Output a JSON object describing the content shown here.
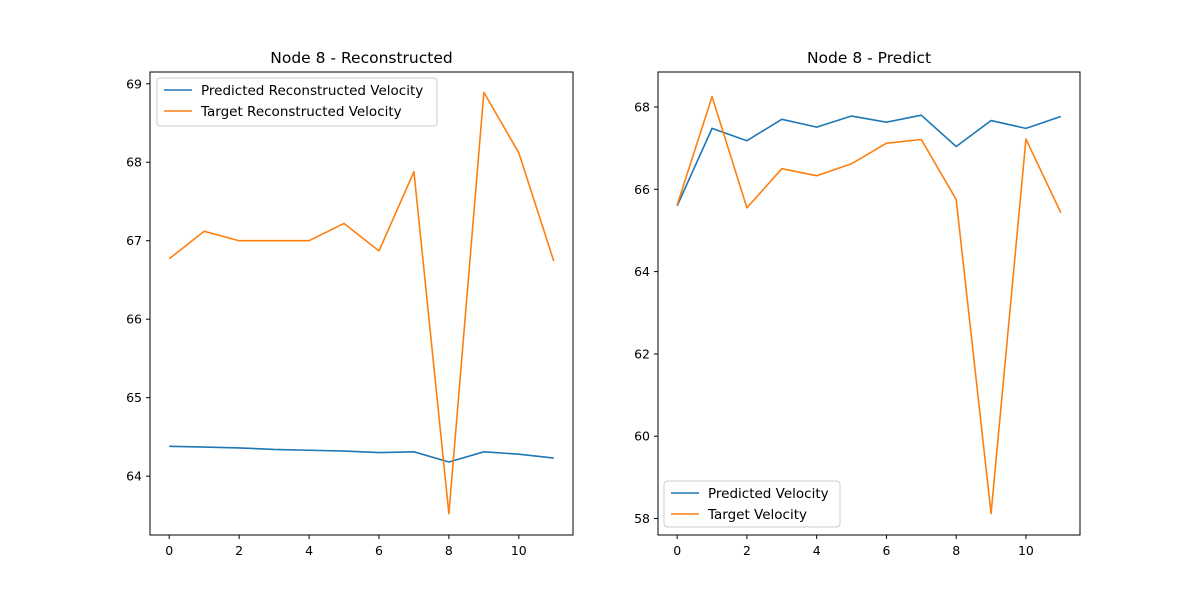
{
  "colors": {
    "series1": "#1f77b4",
    "series2": "#ff7f0e",
    "axes": "#000000",
    "background": "#ffffff",
    "legend_border": "#cccccc"
  },
  "chart_data": [
    {
      "type": "line",
      "title": "Node 8 - Reconstructed",
      "xlabel": "",
      "ylabel": "",
      "x": [
        0,
        1,
        2,
        3,
        4,
        5,
        6,
        7,
        8,
        9,
        10,
        11
      ],
      "xlim": [
        -0.55,
        11.55
      ],
      "ylim": [
        63.25,
        69.15
      ],
      "xticks": [
        0,
        2,
        4,
        6,
        8,
        10
      ],
      "yticks": [
        64,
        65,
        66,
        67,
        68,
        69
      ],
      "grid": false,
      "legend_position": "upper-left",
      "series": [
        {
          "name": "Predicted Reconstructed Velocity",
          "color": "#1f77b4",
          "values": [
            64.38,
            64.37,
            64.36,
            64.34,
            64.33,
            64.32,
            64.3,
            64.31,
            64.18,
            64.31,
            64.28,
            64.23
          ]
        },
        {
          "name": "Target Reconstructed Velocity",
          "color": "#ff7f0e",
          "values": [
            66.77,
            67.12,
            67.0,
            67.0,
            67.0,
            67.22,
            66.87,
            67.88,
            63.52,
            68.89,
            68.12,
            66.74
          ]
        }
      ]
    },
    {
      "type": "line",
      "title": "Node 8 - Predict",
      "xlabel": "",
      "ylabel": "",
      "x": [
        0,
        1,
        2,
        3,
        4,
        5,
        6,
        7,
        8,
        9,
        10,
        11
      ],
      "xlim": [
        -0.55,
        11.55
      ],
      "ylim": [
        57.6,
        68.85
      ],
      "xticks": [
        0,
        2,
        4,
        6,
        8,
        10
      ],
      "yticks": [
        58,
        60,
        62,
        64,
        66,
        68
      ],
      "grid": false,
      "legend_position": "lower-left",
      "series": [
        {
          "name": "Predicted Velocity",
          "color": "#1f77b4",
          "values": [
            65.6,
            67.48,
            67.18,
            67.7,
            67.51,
            67.78,
            67.63,
            67.8,
            67.04,
            67.67,
            67.48,
            67.77
          ]
        },
        {
          "name": "Target Velocity",
          "color": "#ff7f0e",
          "values": [
            65.62,
            68.25,
            65.55,
            66.5,
            66.33,
            66.62,
            67.12,
            67.21,
            65.75,
            58.12,
            67.22,
            65.43
          ]
        }
      ]
    }
  ]
}
